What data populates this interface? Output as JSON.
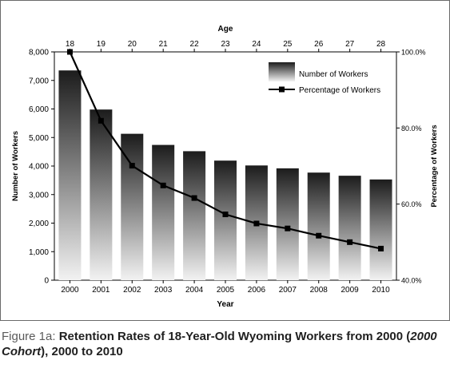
{
  "chart_data": {
    "type": "bar",
    "categories": [
      "2000",
      "2001",
      "2002",
      "2003",
      "2004",
      "2005",
      "2006",
      "2007",
      "2008",
      "2009",
      "2010"
    ],
    "ages": [
      "18",
      "19",
      "20",
      "21",
      "22",
      "23",
      "24",
      "25",
      "26",
      "27",
      "28"
    ],
    "series": [
      {
        "name": "Number of Workers",
        "type": "bar",
        "axis": "left",
        "values": [
          7350,
          5980,
          5130,
          4740,
          4520,
          4190,
          4020,
          3920,
          3770,
          3660,
          3530
        ]
      },
      {
        "name": "Percentage of Workers",
        "type": "line",
        "axis": "right",
        "values": [
          100.0,
          81.9,
          70.1,
          64.9,
          61.6,
          57.3,
          54.9,
          53.6,
          51.7,
          50.0,
          48.3
        ]
      }
    ],
    "xlabel": "Year",
    "x2label": "Age",
    "ylabel": "Number of Workers",
    "y2label": "Percentage of Workers",
    "ylim": [
      0,
      8000
    ],
    "y2lim": [
      40,
      100
    ],
    "yticks": [
      "0",
      "1,000",
      "2,000",
      "3,000",
      "4,000",
      "5,000",
      "6,000",
      "7,000",
      "8,000"
    ],
    "y2ticks": [
      "40.0%",
      "60.0%",
      "80.0%",
      "100.0%"
    ],
    "legend_position": "top-right",
    "grid": false
  },
  "caption": {
    "label": "Figure 1a:",
    "text_before": "Retention Rates of 18-Year-Old Wyoming Workers from 2000 (",
    "italic": "2000 Cohort",
    "text_after": "), 2000 to 2010"
  },
  "colors": {
    "bar_top": "#1c1c1c",
    "bar_bottom": "#f2f2f2",
    "line": "#000000"
  }
}
